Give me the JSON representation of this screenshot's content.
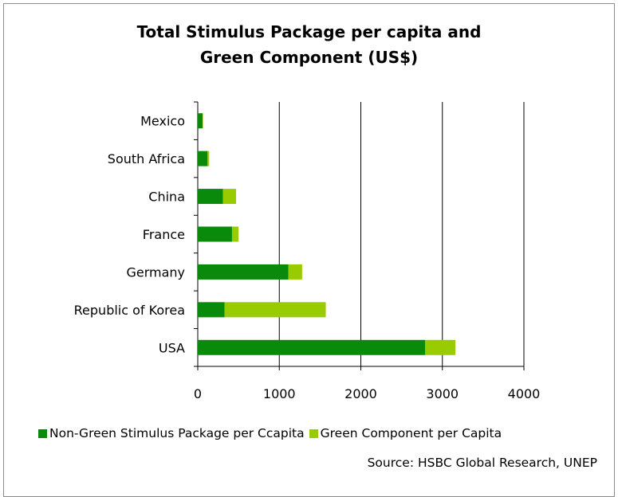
{
  "chart_data": {
    "type": "bar",
    "orientation": "horizontal",
    "stacked": true,
    "title_line1": "Total Stimulus Package per capita and",
    "title_line2": "Green Component (US$)",
    "categories": [
      "Mexico",
      "South Africa",
      "China",
      "France",
      "Germany",
      "Republic of Korea",
      "USA"
    ],
    "series": [
      {
        "name": "Non-Green Stimulus Package per Ccapita",
        "color": "#0a8a0a",
        "values": [
          60,
          120,
          310,
          420,
          1110,
          330,
          2790
        ]
      },
      {
        "name": "Green Component per Capita",
        "color": "#99cc00",
        "values": [
          5,
          20,
          160,
          80,
          170,
          1240,
          370
        ]
      }
    ],
    "xlim": [
      0,
      4000
    ],
    "xticks": [
      "0",
      "1000",
      "2000",
      "3000",
      "4000"
    ],
    "grid": "vertical",
    "legend_position": "bottom",
    "source": "Source: HSBC Global Research, UNEP"
  }
}
